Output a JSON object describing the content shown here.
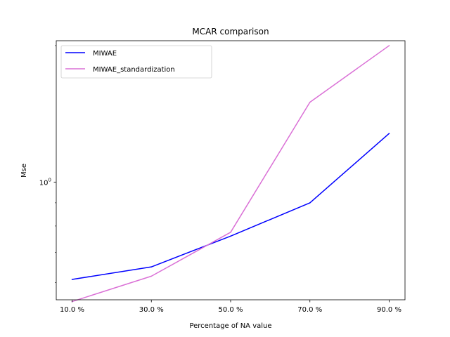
{
  "chart_data": {
    "type": "line",
    "title": "MCAR comparison",
    "xlabel": "Percentage of NA value",
    "ylabel": "Mse",
    "yscale": "log",
    "categories": [
      "10.0 %",
      "30.0 %",
      "50.0 %",
      "70.0 %",
      "90.0 %"
    ],
    "ytick_labels": [
      {
        "value": 1,
        "base": "10",
        "exp": "0"
      }
    ],
    "ylim": [
      0.55,
      2.05
    ],
    "legend_position": "upper left",
    "grid": false,
    "series": [
      {
        "name": "MIWAE",
        "color": "#0000ff",
        "values": [
          0.61,
          0.65,
          0.76,
          0.9,
          1.28
        ]
      },
      {
        "name": "MIWAE_standardization",
        "color": "#da70d6",
        "values": [
          0.545,
          0.62,
          0.775,
          1.5,
          2.0
        ]
      }
    ]
  }
}
